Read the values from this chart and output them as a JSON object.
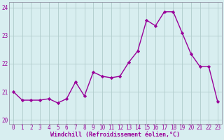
{
  "x": [
    0,
    1,
    2,
    3,
    4,
    5,
    6,
    7,
    8,
    9,
    10,
    11,
    12,
    13,
    14,
    15,
    16,
    17,
    18,
    19,
    20,
    21,
    22,
    23
  ],
  "y": [
    21.0,
    20.7,
    20.7,
    20.7,
    20.75,
    20.6,
    20.75,
    21.35,
    20.85,
    21.7,
    21.55,
    21.5,
    21.55,
    22.05,
    22.45,
    23.55,
    23.35,
    23.85,
    23.85,
    23.1,
    22.35,
    21.9,
    21.9,
    20.65
  ],
  "line_color": "#990099",
  "marker": "D",
  "markersize": 2.2,
  "linewidth": 1.0,
  "background_color": "#d8eef0",
  "grid_color": "#b0cccc",
  "xlabel": "Windchill (Refroidissement éolien,°C)",
  "xlabel_color": "#990099",
  "tick_color": "#990099",
  "spine_color": "#888899",
  "ylim": [
    19.85,
    24.2
  ],
  "yticks": [
    20,
    21,
    22,
    23,
    24
  ],
  "xticks": [
    0,
    1,
    2,
    3,
    4,
    5,
    6,
    7,
    8,
    9,
    10,
    11,
    12,
    13,
    14,
    15,
    16,
    17,
    18,
    19,
    20,
    21,
    22,
    23
  ],
  "xlim": [
    -0.5,
    23.5
  ],
  "tick_fontsize": 5.5,
  "xlabel_fontsize": 6.0,
  "xlabel_fontweight": "bold"
}
